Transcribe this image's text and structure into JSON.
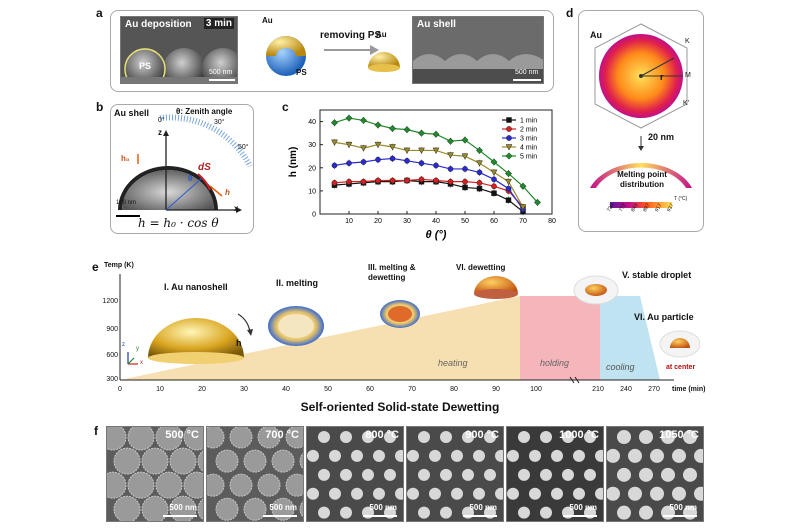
{
  "figure": {
    "panel_labels": [
      "a",
      "b",
      "c",
      "d",
      "e",
      "f"
    ]
  },
  "panel_a": {
    "sem1_title": "Au deposition",
    "sem1_time": "3 min",
    "ps_label": "PS",
    "sem1_scale": "500 nm",
    "au_label": "Au",
    "ps_label2": "PS",
    "arrow_text": "removing PS",
    "au_label2": "Au",
    "sem2_title": "Au shell",
    "sem2_scale": "500 nm"
  },
  "panel_b": {
    "title": "Au shell",
    "zenith": "θ: Zenith angle",
    "angle_ticks": [
      "0°",
      "30°",
      "50°"
    ],
    "axis_z": "z",
    "axis_x": "x",
    "h0": "h₀",
    "ds": "dS",
    "theta": "θ",
    "h": "h",
    "scale": "100 nm",
    "formula": "h = h₀ · cos θ"
  },
  "chart_data": {
    "type": "line",
    "xlabel": "θ (°)",
    "ylabel": "h (nm)",
    "xlim": [
      0,
      80
    ],
    "ylim": [
      0,
      45
    ],
    "xticks": [
      10,
      20,
      30,
      40,
      50,
      60,
      70,
      80
    ],
    "yticks": [
      0,
      10,
      20,
      30,
      40
    ],
    "legend_position": "top-right",
    "series": [
      {
        "name": "1 min",
        "color": "#111111",
        "marker": "square",
        "x": [
          5,
          10,
          15,
          20,
          25,
          30,
          35,
          40,
          45,
          50,
          55,
          60,
          65,
          70
        ],
        "y": [
          12.5,
          13,
          13.5,
          14,
          14,
          14.5,
          14,
          14,
          13,
          11.5,
          11,
          9,
          6,
          1
        ]
      },
      {
        "name": "2 min",
        "color": "#d62020",
        "marker": "circle",
        "x": [
          5,
          10,
          15,
          20,
          25,
          30,
          35,
          40,
          45,
          50,
          55,
          60,
          65,
          70
        ],
        "y": [
          13.5,
          14,
          14,
          14.5,
          14.5,
          14.5,
          15,
          14.5,
          14,
          14,
          13.5,
          12,
          10,
          3
        ]
      },
      {
        "name": "3 min",
        "color": "#2a2ad0",
        "marker": "circle",
        "x": [
          5,
          10,
          15,
          20,
          25,
          30,
          35,
          40,
          45,
          50,
          55,
          60,
          65,
          70
        ],
        "y": [
          21,
          22,
          22.5,
          23.5,
          24,
          23,
          22,
          21,
          19.5,
          19.5,
          18,
          15,
          11,
          2
        ]
      },
      {
        "name": "4 min",
        "color": "#9a8a2a",
        "marker": "triangle-down",
        "x": [
          5,
          10,
          15,
          20,
          25,
          30,
          35,
          40,
          45,
          50,
          55,
          60,
          65,
          70
        ],
        "y": [
          31,
          30,
          28.5,
          30,
          29,
          27.5,
          27.5,
          27.5,
          25.5,
          25,
          22,
          18,
          14,
          3
        ]
      },
      {
        "name": "5 min",
        "color": "#1e8a2a",
        "marker": "diamond",
        "x": [
          5,
          10,
          15,
          20,
          25,
          30,
          35,
          40,
          45,
          50,
          55,
          60,
          65,
          70,
          75
        ],
        "y": [
          39.5,
          41.5,
          40.5,
          38.5,
          37,
          36.5,
          35,
          34.5,
          31.5,
          32,
          27.5,
          22.5,
          17.5,
          12,
          5
        ]
      }
    ]
  },
  "panel_d": {
    "au": "Au",
    "k": "K",
    "m": "M",
    "k2": "K'",
    "r": "r",
    "thickness": "20 nm",
    "caption": "Melting point distribution",
    "colorbar_unit": "T (°C)",
    "colorbar_ticks": [
      "720",
      "772",
      "843",
      "897",
      "917",
      "937"
    ]
  },
  "panel_e": {
    "ylabel": "Temp (K)",
    "yticks": [
      "300",
      "600",
      "900",
      "1200"
    ],
    "xticks": [
      "0",
      "10",
      "20",
      "30",
      "40",
      "50",
      "60",
      "70",
      "80",
      "90",
      "100",
      "210",
      "240",
      "270"
    ],
    "xlabel": "time (min)",
    "stage1": "I. Au nanoshell",
    "stage2": "II. melting",
    "stage3": "III. melting & dewetting",
    "stage4": "VI. dewetting",
    "stage5": "V. stable droplet",
    "stage6": "VI. Au particle",
    "at_center": "at center",
    "h_label": "h",
    "axis_z": "z",
    "axis_y": "y",
    "axis_x": "x",
    "phase_heating": "heating",
    "phase_holding": "holding",
    "phase_cooling": "cooling",
    "title": "Self-oriented Solid-state Dewetting"
  },
  "panel_f": {
    "temps": [
      "500 °C",
      "700 °C",
      "800 °C",
      "900 °C",
      "1000 °C",
      "1050 °C"
    ],
    "scale": "500 nm"
  },
  "colors": {
    "heating_fill": "#f6dfb0",
    "holding_fill": "#f4b5bb",
    "cooling_fill": "#bfe3f0",
    "gold": "#d9a520"
  }
}
